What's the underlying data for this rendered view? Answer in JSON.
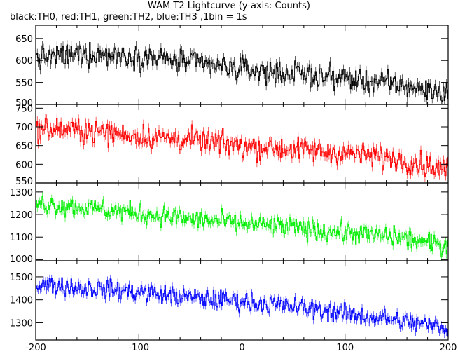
{
  "chart_data": {
    "type": "line",
    "title": "WAM T2 Lightcurve (y-axis: Counts)",
    "subtitle": "black:TH0, red:TH1, green:TH2, blue:TH3 ,1bin = 1s",
    "xlabel": "",
    "ylabel": "",
    "xlim": [
      -200,
      200
    ],
    "x_ticks": [
      -200,
      -100,
      0,
      100,
      200
    ],
    "bin_seconds": 1,
    "panels": [
      {
        "name": "TH0",
        "color": "#000000",
        "ylim": [
          500,
          680
        ],
        "y_ticks": [
          500,
          550,
          600,
          650
        ],
        "trend": {
          "x": [
            -200,
            -150,
            -100,
            -50,
            0,
            50,
            100,
            150,
            200
          ],
          "y": [
            605,
            615,
            610,
            595,
            580,
            570,
            560,
            545,
            525
          ]
        },
        "noise": 24
      },
      {
        "name": "TH1",
        "color": "#ff0000",
        "ylim": [
          550,
          760
        ],
        "y_ticks": [
          550,
          600,
          650,
          700,
          750
        ],
        "trend": {
          "x": [
            -200,
            -150,
            -100,
            -50,
            0,
            50,
            100,
            150,
            200
          ],
          "y": [
            695,
            690,
            675,
            665,
            650,
            640,
            630,
            615,
            585
          ]
        },
        "noise": 28
      },
      {
        "name": "TH2",
        "color": "#00ee00",
        "ylim": [
          995,
          1340
        ],
        "y_ticks": [
          1000,
          1100,
          1200,
          1300
        ],
        "trend": {
          "x": [
            -200,
            -150,
            -100,
            -50,
            0,
            50,
            100,
            150,
            200
          ],
          "y": [
            1250,
            1230,
            1205,
            1180,
            1160,
            1140,
            1120,
            1100,
            1060
          ]
        },
        "noise": 40
      },
      {
        "name": "TH3",
        "color": "#0000ff",
        "ylim": [
          1225,
          1570
        ],
        "y_ticks": [
          1300,
          1400,
          1500
        ],
        "trend": {
          "x": [
            -200,
            -150,
            -100,
            -50,
            0,
            50,
            100,
            150,
            200
          ],
          "y": [
            1470,
            1450,
            1435,
            1410,
            1395,
            1370,
            1340,
            1310,
            1280
          ]
        },
        "noise": 38
      }
    ]
  }
}
